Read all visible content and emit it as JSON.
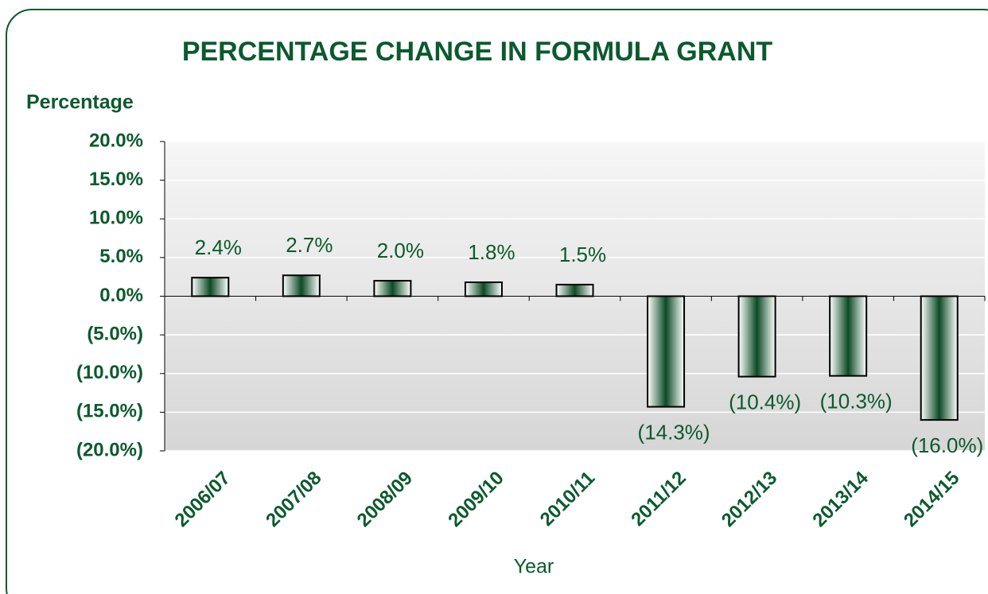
{
  "chart_data": {
    "type": "bar",
    "title": "PERCENTAGE CHANGE IN FORMULA GRANT",
    "y_label": "Percentage",
    "x_label": "Year",
    "categories": [
      "2006/07",
      "2007/08",
      "2008/09",
      "2009/10",
      "2010/11",
      "2011/12",
      "2012/13",
      "2013/14",
      "2014/15"
    ],
    "values": [
      2.4,
      2.7,
      2.0,
      1.8,
      1.5,
      -14.3,
      -10.4,
      -10.3,
      -16.0
    ],
    "value_labels": [
      "2.4%",
      "2.7%",
      "2.0%",
      "1.8%",
      "1.5%",
      "(14.3%)",
      "(10.4%)",
      "(10.3%)",
      "(16.0%)"
    ],
    "color": "#0b4a25",
    "ylim": [
      -20,
      20
    ],
    "yticks": [
      {
        "value": -20,
        "label": "(20.0%)"
      },
      {
        "value": -15,
        "label": "(15.0%)"
      },
      {
        "value": -10,
        "label": "(10.0%)"
      },
      {
        "value": -5,
        "label": "(5.0%)"
      },
      {
        "value": 0,
        "label": "0.0%"
      },
      {
        "value": 5,
        "label": "5.0%"
      },
      {
        "value": 10,
        "label": "10.0%"
      },
      {
        "value": 15,
        "label": "15.0%"
      },
      {
        "value": 20,
        "label": "20.0%"
      }
    ],
    "grid": true
  }
}
